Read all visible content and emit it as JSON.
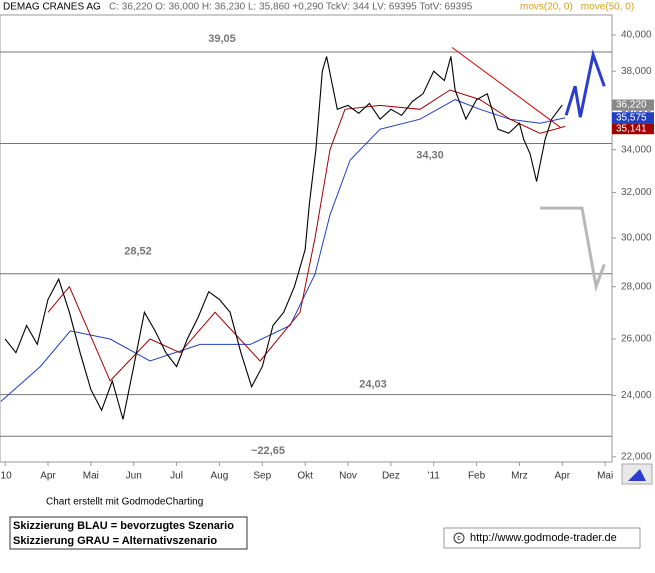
{
  "chart_data": {
    "type": "line",
    "title": "DEMAG CRANES AG",
    "quote": "C: 36,220 O: 36,000 H: 36,230 L: 35,860 +0,290 TckV: 344 LV: 69395 TotV: 69395",
    "log_scale": true,
    "ylim": [
      21.84,
      41.15
    ],
    "yticks": [
      {
        "value": 22,
        "label": "22,000"
      },
      {
        "value": 24,
        "label": "24,000"
      },
      {
        "value": 26,
        "label": "26,000"
      },
      {
        "value": 28,
        "label": "28,000"
      },
      {
        "value": 30,
        "label": "30,000"
      },
      {
        "value": 32,
        "label": "32,000"
      },
      {
        "value": 34,
        "label": "34,000"
      },
      {
        "value": 36,
        "label": "36,000"
      },
      {
        "value": 38,
        "label": "38,000"
      },
      {
        "value": 40,
        "label": "40,000"
      }
    ],
    "xlim": [
      -0.12,
      14.16
    ],
    "xticks": [
      {
        "value": 0,
        "label": "'10"
      },
      {
        "value": 1,
        "label": "Apr"
      },
      {
        "value": 2,
        "label": "Mai"
      },
      {
        "value": 3,
        "label": "Jun"
      },
      {
        "value": 4,
        "label": "Jul"
      },
      {
        "value": 5,
        "label": "Aug"
      },
      {
        "value": 6,
        "label": "Sep"
      },
      {
        "value": 7,
        "label": "Okt"
      },
      {
        "value": 8,
        "label": "Nov"
      },
      {
        "value": 9,
        "label": "Dez"
      },
      {
        "value": 10,
        "label": "'11"
      },
      {
        "value": 11,
        "label": "Feb"
      },
      {
        "value": 12,
        "label": "Mrz"
      },
      {
        "value": 13,
        "label": "Apr"
      },
      {
        "value": 14,
        "label": "Mai"
      }
    ],
    "series": [
      {
        "color": "#000000",
        "x": [
          0,
          0.25,
          0.5,
          0.75,
          1.0,
          1.25,
          1.5,
          1.75,
          2.0,
          2.25,
          2.5,
          2.75,
          3.0,
          3.25,
          3.5,
          3.75,
          4.0,
          4.25,
          4.5,
          4.75,
          5.0,
          5.25,
          5.5,
          5.75,
          6.0,
          6.25,
          6.5,
          6.75,
          7.0,
          7.1,
          7.25,
          7.4,
          7.5,
          7.75,
          8.0,
          8.25,
          8.5,
          8.75,
          9.0,
          9.25,
          9.5,
          9.75,
          10.0,
          10.25,
          10.4,
          10.5,
          10.75,
          11.0,
          11.25,
          11.5,
          11.75,
          12.0,
          12.1,
          12.25,
          12.4,
          12.5,
          12.6,
          12.75,
          13.0
        ],
        "values": [
          26.0,
          25.5,
          26.5,
          25.8,
          27.5,
          28.3,
          27.0,
          25.5,
          24.2,
          23.5,
          24.5,
          23.2,
          25.0,
          27.0,
          26.3,
          25.5,
          25.0,
          26.0,
          26.8,
          27.8,
          27.5,
          27.0,
          25.5,
          24.3,
          25.0,
          26.5,
          27.0,
          28.0,
          29.5,
          31.5,
          34.0,
          38.0,
          38.8,
          36.0,
          36.2,
          35.8,
          36.3,
          35.5,
          36.0,
          35.7,
          36.4,
          36.8,
          38.0,
          37.5,
          38.8,
          37.0,
          35.5,
          36.5,
          36.8,
          35.0,
          34.8,
          35.3,
          34.5,
          33.8,
          32.5,
          33.5,
          34.5,
          35.5,
          36.22
        ],
        "last_label": "36,220",
        "label_color": "#888888"
      },
      {
        "name": "movs(20, 0)",
        "color": "#a00000",
        "legend_color": "#d4a017",
        "x": [
          1.0,
          1.5,
          2.45,
          3.38,
          4.08,
          4.9,
          5.95,
          6.88,
          7.23,
          7.58,
          7.93,
          8.75,
          9.68,
          10.38,
          11.08,
          11.78,
          12.48,
          13.07
        ],
        "values": [
          27.0,
          28.0,
          24.5,
          26.0,
          25.5,
          27.0,
          25.2,
          27.0,
          30.0,
          34.0,
          36.0,
          36.2,
          36.0,
          37.0,
          36.5,
          35.5,
          34.8,
          35.141
        ],
        "last_label": "35,141",
        "label_color": "#a00000"
      },
      {
        "name": "move(50, 0)",
        "color": "#2040c0",
        "legend_color": "#d4a017",
        "x": [
          -0.1,
          0.82,
          1.52,
          2.45,
          3.38,
          4.55,
          5.72,
          6.65,
          7.23,
          7.58,
          8.05,
          8.75,
          9.68,
          10.5,
          11.08,
          11.78,
          12.48,
          13.07
        ],
        "values": [
          23.8,
          25.0,
          26.3,
          26.0,
          25.2,
          25.8,
          25.8,
          26.5,
          28.5,
          31.0,
          33.5,
          35.0,
          35.5,
          36.5,
          36.0,
          35.5,
          35.3,
          35.575
        ],
        "last_label": "35,575",
        "label_color": "#2040c0"
      }
    ],
    "levels": [
      {
        "value": 39.05,
        "label": "39,05"
      },
      {
        "value": 34.3,
        "label": "34,30"
      },
      {
        "value": 28.52,
        "label": "28,52"
      },
      {
        "value": 24.03,
        "label": "24,03"
      },
      {
        "value": 22.65,
        "label": "~22,65"
      }
    ],
    "trendline": {
      "color": "#d00000",
      "x": [
        10.43,
        12.95
      ],
      "values": [
        39.3,
        35.1
      ]
    },
    "scenarios": [
      {
        "color": "#2a3fd0",
        "x": [
          13.09,
          13.3,
          13.42,
          13.72,
          13.98
        ],
        "values": [
          35.7,
          37.2,
          35.6,
          38.9,
          37.2
        ]
      },
      {
        "color": "#b8b8b8",
        "x": [
          12.48,
          13.46,
          13.79,
          13.98
        ],
        "values": [
          31.3,
          31.3,
          28.0,
          28.9
        ]
      }
    ]
  },
  "footer": {
    "credit": "Chart erstellt mit GodmodeCharting",
    "legend": [
      "Skizzierung BLAU = bevorzugtes Szenario",
      "Skizzierung GRAU = Alternativszenario"
    ],
    "url": "http://www.godmode-trader.de"
  }
}
